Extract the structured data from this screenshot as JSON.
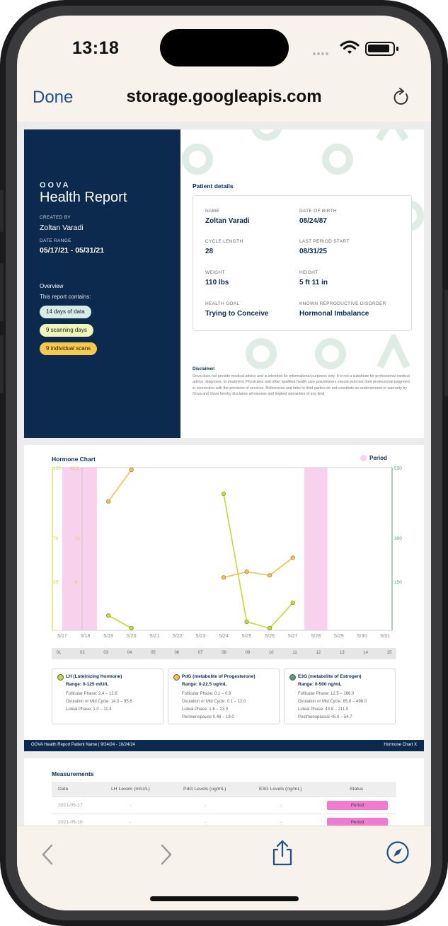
{
  "status_bar": {
    "time": "13:18"
  },
  "browser": {
    "done_label": "Done",
    "host": "storage.googleapis.com"
  },
  "report": {
    "logo": "OOVA",
    "title": "Health Report",
    "created_by_label": "CREATED BY",
    "created_by": "Zoltan Varadi",
    "date_range_label": "DATE RANGE",
    "date_range": "05/17/21 - 05/31/21",
    "overview_label": "Overview",
    "contains_label": "This report contains:",
    "pills": [
      {
        "label": "14 days of data",
        "color": "#d5ede6"
      },
      {
        "label": "9 scanning days",
        "color": "#eef7b8"
      },
      {
        "label": "9 individual scans",
        "color": "#f7c94a"
      }
    ],
    "patient_details_title": "Patient details",
    "patient": {
      "name_label": "NAME",
      "name": "Zoltan Varadi",
      "dob_label": "DATE OF BIRTH",
      "dob": "08/24/87",
      "cycle_label": "CYCLE LENGTH",
      "cycle": "28",
      "last_period_label": "LAST PERIOD START",
      "last_period": "08/31/25",
      "weight_label": "WEIGHT",
      "weight": "110 lbs",
      "height_label": "HEIGHT",
      "height": "5 ft 11 in",
      "goal_label": "HEALTH GOAL",
      "goal": "Trying to Conceive",
      "disorder_label": "KNOWN REPRODUCTIVE DISORDER",
      "disorder": "Hormonal Imbalance"
    },
    "disclaimer_title": "Disclaimer:",
    "disclaimer": "Oova does not provide medical advice and is intended for informational purposes only. It is not a substitute for professional medical advice, diagnosis, or treatment. Physicians and other qualified health care practitioners should exercise their professional judgment in connection with the provision of services. References and links to third parties do not constitute an endorsement or warranty by Oova and Oova hereby disclaims all express and implied warranties of any kind."
  },
  "hormone_chart": {
    "title": "Hormone Chart",
    "legend_period": "Period",
    "colors": {
      "lh": "#c3dd2a",
      "pdg": "#f2c24a",
      "e3g": "#4fa07a",
      "period": "#f8d2ec"
    },
    "left_ticks_lh": [
      "125",
      "70",
      "35"
    ],
    "left_ticks_pdg": [
      "22.5",
      "12",
      "6"
    ],
    "right_ticks_e3g": [
      "550",
      "300",
      "150"
    ],
    "x_labels": [
      "5/17",
      "5/18",
      "5/19",
      "5/20",
      "5/21",
      "5/22",
      "5/23",
      "5/24",
      "5/25",
      "5/26",
      "5/27",
      "5/28",
      "5/29",
      "5/30",
      "5/31"
    ],
    "days": [
      "01",
      "02",
      "03",
      "04",
      "05",
      "06",
      "07",
      "08",
      "09",
      "10",
      "11",
      "12",
      "13",
      "14",
      "15"
    ],
    "boxes": [
      {
        "title": "LH (Luteinizing Hormone)",
        "range": "Range: 0-125 mIU/L",
        "color": "#c3dd2a",
        "lines": [
          "Follicular Phase: 2.4 – 12.6",
          "Ovulation or Mid Cycle: 14.0 – 95.6",
          "Luteal Phase: 1.0 – 11.4"
        ]
      },
      {
        "title": "PdG (metabolite of Progesterone)",
        "range": "Range: 0-22.5 ug/mL",
        "color": "#f2c24a",
        "lines": [
          "Follicular Phase: 0.1 – 0.9",
          "Ovulation or Mid Cycle: 0.1 – 12.0",
          "Luteal Phase: 1.8 – 23.9",
          "Perimenopause 0.48 – 19.0"
        ]
      },
      {
        "title": "E3G (metabolite of Estrogen)",
        "range": "Range: 0-500 ng/mL",
        "color": "#4fa07a",
        "lines": [
          "Follicular Phase: 12.5 – 166.0",
          "Ovulation or Mid Cycle: 85.8 – 498.0",
          "Luteal Phase: 43.8 – 211.0",
          "Postmenopausal <6.0 – 54.7"
        ]
      }
    ],
    "footer_left": "OOVA  Health Report  Patient Name  |  9/24/24 - 10/24/24",
    "footer_right": "Hormone Chart   X"
  },
  "chart_data": {
    "type": "line",
    "x": [
      "5/17",
      "5/18",
      "5/19",
      "5/20",
      "5/21",
      "5/22",
      "5/23",
      "5/24",
      "5/25",
      "5/26",
      "5/27",
      "5/28",
      "5/29",
      "5/30",
      "5/31"
    ],
    "series": [
      {
        "name": "LH (Luteinizing Hormone)",
        "axis": "lh",
        "values": [
          null,
          null,
          10,
          0,
          null,
          null,
          null,
          106,
          5,
          0,
          20,
          null,
          null,
          null,
          null
        ]
      },
      {
        "name": "PdG (metabolite of Progesterone)",
        "axis": "pdg",
        "values": [
          null,
          null,
          18,
          22.5,
          null,
          null,
          null,
          7.2,
          8,
          7.5,
          10,
          null,
          null,
          null,
          null
        ]
      }
    ],
    "period_ranges": [
      [
        "5/17",
        "5/18"
      ],
      [
        "5/28",
        "5/28"
      ]
    ],
    "ylim_lh": [
      0,
      125
    ],
    "ylim_pdg": [
      0,
      22.5
    ],
    "ylim_e3g": [
      0,
      550
    ]
  },
  "measurements": {
    "title": "Measurements",
    "headers": [
      "Date",
      "LH Levels (mIU/L)",
      "PdG Levels (ug/mL)",
      "E3G Levels (ng/mL)",
      "Status"
    ],
    "rows": [
      {
        "date": "2021-05-17",
        "lh": "-",
        "pdg": "-",
        "e3g": "-",
        "status": "Period"
      },
      {
        "date": "2021-05-18",
        "lh": "-",
        "pdg": "-",
        "e3g": "-",
        "status": "Period"
      }
    ]
  }
}
